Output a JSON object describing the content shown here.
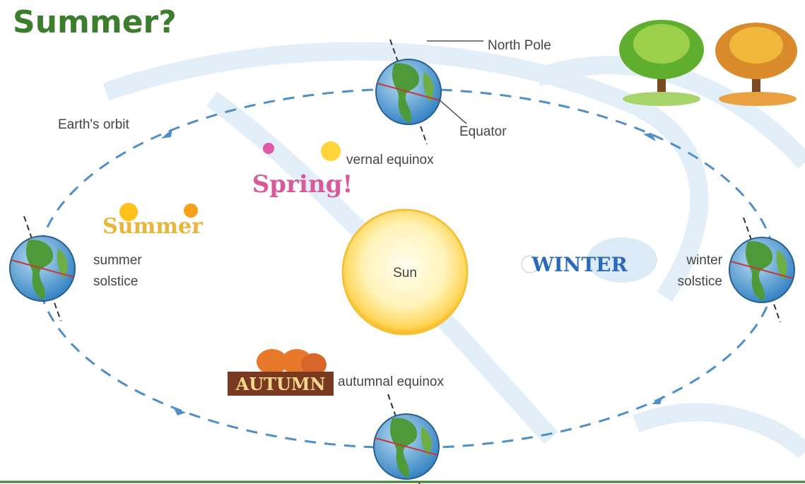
{
  "header": {
    "title": "Summer?"
  },
  "diagram": {
    "orbit_label": "Earth's orbit",
    "north_pole": "North Pole",
    "equator": "Equator",
    "sun": "Sun",
    "positions": [
      {
        "label": [
          "vernal equinox"
        ],
        "season": "Spring!"
      },
      {
        "label": [
          "summer",
          "solstice"
        ],
        "season": "Summer"
      },
      {
        "label": [
          "winter",
          "solstice"
        ],
        "season": "WINTER"
      },
      {
        "label": [
          "autumnal equinox"
        ],
        "season": "AUTUMN"
      }
    ]
  }
}
